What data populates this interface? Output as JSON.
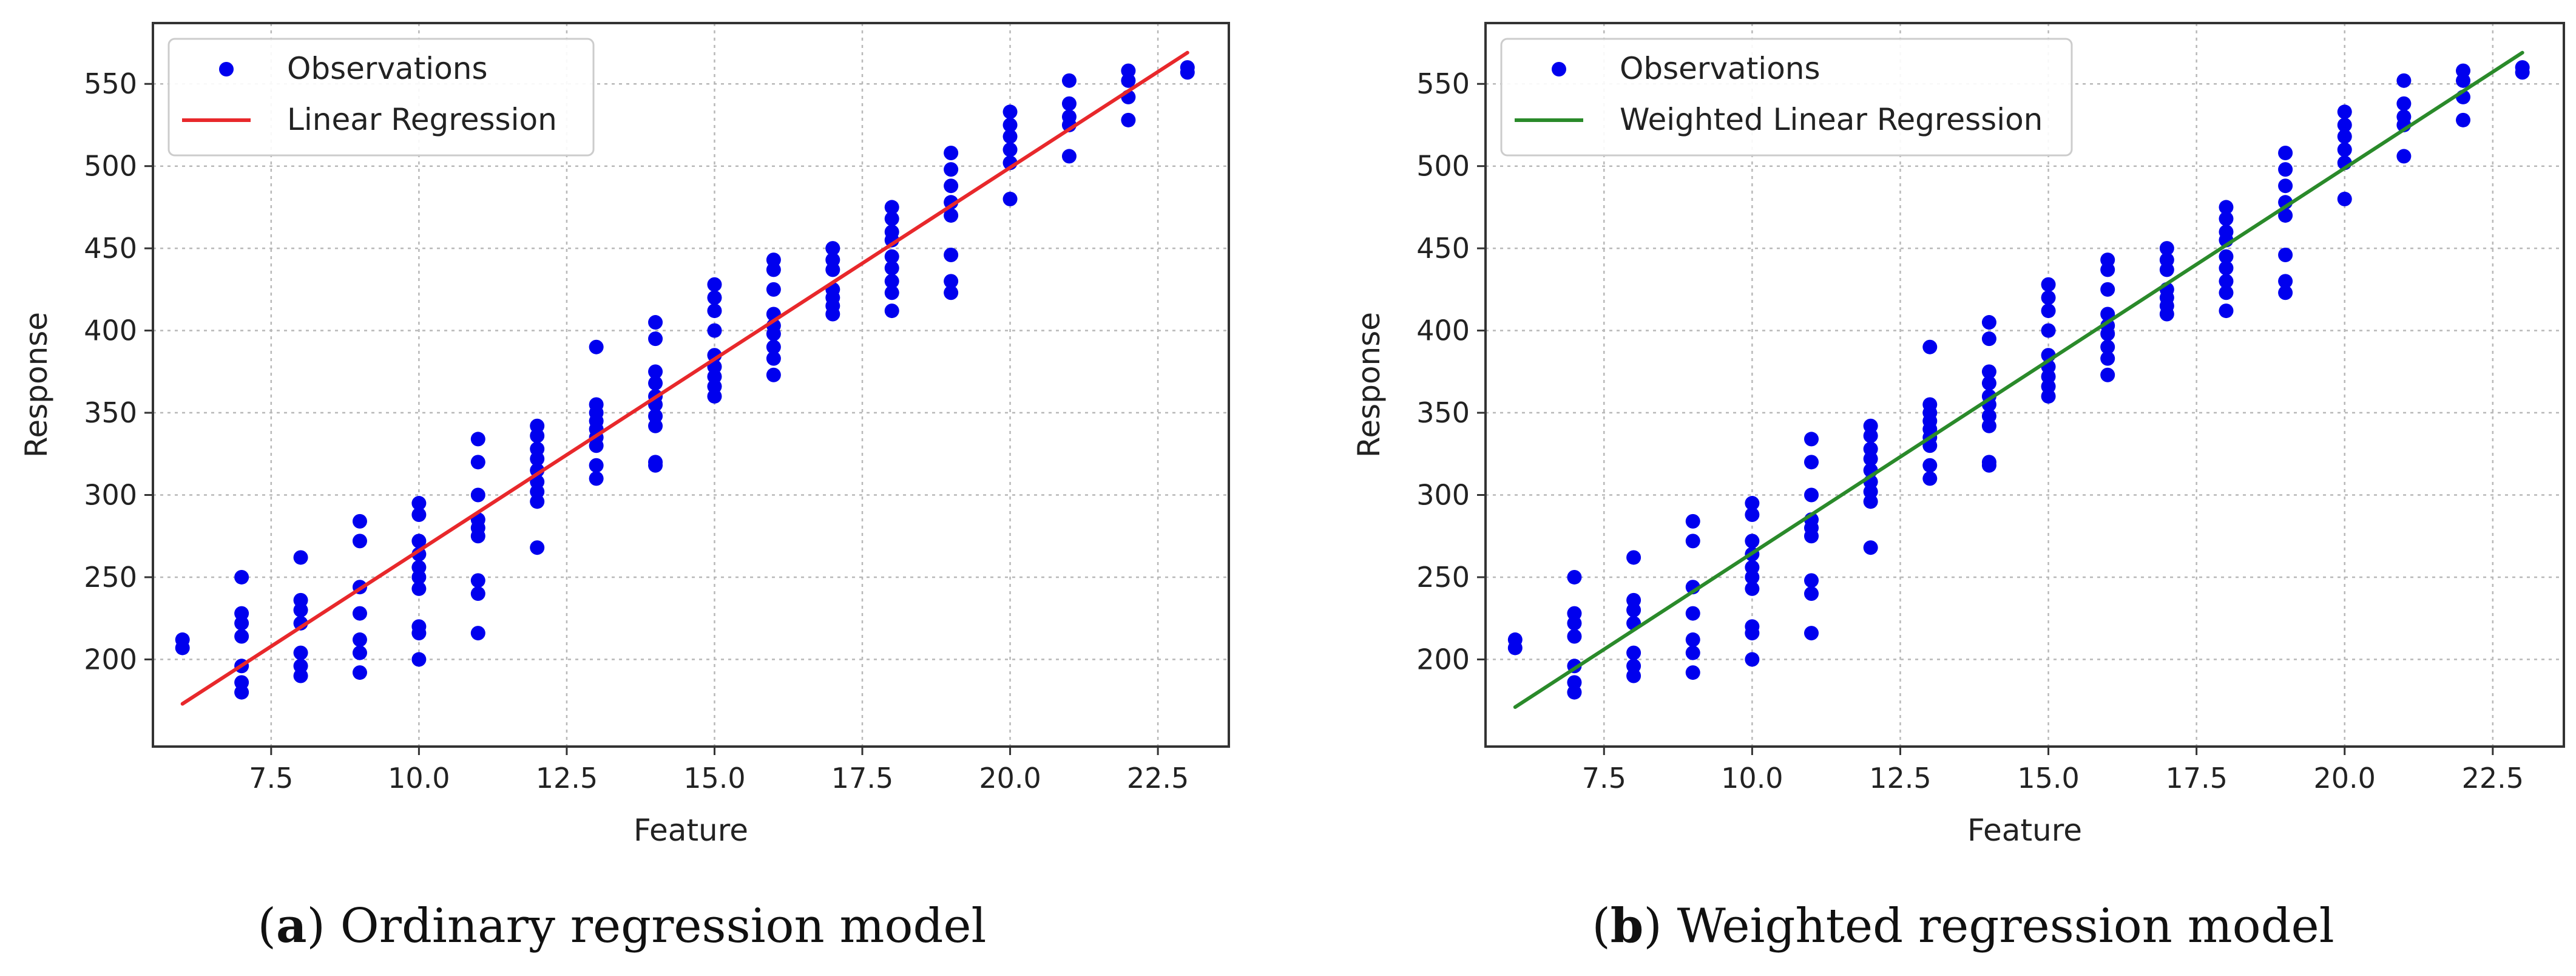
{
  "chart_data": [
    {
      "type": "scatter",
      "caption_letter": "a",
      "caption_text": "Ordinary regression model",
      "caption_open": "(",
      "caption_close": ") ",
      "xlabel": "Feature",
      "ylabel": "Response",
      "xlim": [
        5.5,
        23.7
      ],
      "ylim": [
        147,
        587
      ],
      "xticks": [
        7.5,
        10.0,
        12.5,
        15.0,
        17.5,
        20.0,
        22.5
      ],
      "xtick_labels": [
        "7.5",
        "10.0",
        "12.5",
        "15.0",
        "17.5",
        "20.0",
        "22.5"
      ],
      "yticks": [
        200,
        250,
        300,
        350,
        400,
        450,
        500,
        550
      ],
      "ytick_labels": [
        "200",
        "250",
        "300",
        "350",
        "400",
        "450",
        "500",
        "550"
      ],
      "grid": true,
      "legend_position": "top-left",
      "legend": [
        "Observations",
        "Linear Regression"
      ],
      "series": [
        {
          "name": "Observations",
          "kind": "points",
          "color": "#0000ee",
          "points": [
            [
              6,
              207
            ],
            [
              6,
              212
            ],
            [
              7,
              250
            ],
            [
              7,
              228
            ],
            [
              7,
              222
            ],
            [
              7,
              214
            ],
            [
              7,
              196
            ],
            [
              7,
              186
            ],
            [
              7,
              180
            ],
            [
              8,
              262
            ],
            [
              8,
              236
            ],
            [
              8,
              230
            ],
            [
              8,
              222
            ],
            [
              8,
              204
            ],
            [
              8,
              196
            ],
            [
              8,
              190
            ],
            [
              9,
              284
            ],
            [
              9,
              272
            ],
            [
              9,
              244
            ],
            [
              9,
              228
            ],
            [
              9,
              212
            ],
            [
              9,
              204
            ],
            [
              9,
              192
            ],
            [
              10,
              295
            ],
            [
              10,
              288
            ],
            [
              10,
              272
            ],
            [
              10,
              264
            ],
            [
              10,
              256
            ],
            [
              10,
              250
            ],
            [
              10,
              243
            ],
            [
              10,
              220
            ],
            [
              10,
              216
            ],
            [
              10,
              200
            ],
            [
              11,
              334
            ],
            [
              11,
              320
            ],
            [
              11,
              300
            ],
            [
              11,
              285
            ],
            [
              11,
              280
            ],
            [
              11,
              275
            ],
            [
              11,
              248
            ],
            [
              11,
              240
            ],
            [
              11,
              216
            ],
            [
              12,
              342
            ],
            [
              12,
              336
            ],
            [
              12,
              328
            ],
            [
              12,
              322
            ],
            [
              12,
              315
            ],
            [
              12,
              308
            ],
            [
              12,
              302
            ],
            [
              12,
              296
            ],
            [
              12,
              268
            ],
            [
              13,
              390
            ],
            [
              13,
              355
            ],
            [
              13,
              350
            ],
            [
              13,
              345
            ],
            [
              13,
              340
            ],
            [
              13,
              335
            ],
            [
              13,
              330
            ],
            [
              13,
              318
            ],
            [
              13,
              310
            ],
            [
              14,
              405
            ],
            [
              14,
              395
            ],
            [
              14,
              375
            ],
            [
              14,
              368
            ],
            [
              14,
              360
            ],
            [
              14,
              355
            ],
            [
              14,
              348
            ],
            [
              14,
              342
            ],
            [
              14,
              320
            ],
            [
              14,
              318
            ],
            [
              15,
              428
            ],
            [
              15,
              420
            ],
            [
              15,
              412
            ],
            [
              15,
              400
            ],
            [
              15,
              385
            ],
            [
              15,
              378
            ],
            [
              15,
              372
            ],
            [
              15,
              366
            ],
            [
              15,
              360
            ],
            [
              16,
              443
            ],
            [
              16,
              437
            ],
            [
              16,
              425
            ],
            [
              16,
              410
            ],
            [
              16,
              403
            ],
            [
              16,
              398
            ],
            [
              16,
              390
            ],
            [
              16,
              383
            ],
            [
              16,
              373
            ],
            [
              17,
              450
            ],
            [
              17,
              443
            ],
            [
              17,
              437
            ],
            [
              17,
              425
            ],
            [
              17,
              420
            ],
            [
              17,
              415
            ],
            [
              17,
              410
            ],
            [
              18,
              475
            ],
            [
              18,
              468
            ],
            [
              18,
              460
            ],
            [
              18,
              455
            ],
            [
              18,
              445
            ],
            [
              18,
              438
            ],
            [
              18,
              430
            ],
            [
              18,
              423
            ],
            [
              18,
              412
            ],
            [
              19,
              508
            ],
            [
              19,
              498
            ],
            [
              19,
              488
            ],
            [
              19,
              478
            ],
            [
              19,
              470
            ],
            [
              19,
              446
            ],
            [
              19,
              430
            ],
            [
              19,
              423
            ],
            [
              20,
              533
            ],
            [
              20,
              525
            ],
            [
              20,
              518
            ],
            [
              20,
              510
            ],
            [
              20,
              502
            ],
            [
              20,
              480
            ],
            [
              21,
              552
            ],
            [
              21,
              538
            ],
            [
              21,
              530
            ],
            [
              21,
              525
            ],
            [
              21,
              506
            ],
            [
              22,
              558
            ],
            [
              22,
              552
            ],
            [
              22,
              542
            ],
            [
              22,
              528
            ],
            [
              23,
              560
            ],
            [
              23,
              557
            ]
          ]
        },
        {
          "name": "Linear Regression",
          "kind": "line",
          "color": "#e8282b",
          "x": [
            6,
            23
          ],
          "y": [
            173,
            569
          ]
        }
      ]
    },
    {
      "type": "scatter",
      "caption_letter": "b",
      "caption_text": "Weighted regression model",
      "caption_open": "(",
      "caption_close": ") ",
      "xlabel": "Feature",
      "ylabel": "Response",
      "xlim": [
        5.5,
        23.7
      ],
      "ylim": [
        147,
        587
      ],
      "xticks": [
        7.5,
        10.0,
        12.5,
        15.0,
        17.5,
        20.0,
        22.5
      ],
      "xtick_labels": [
        "7.5",
        "10.0",
        "12.5",
        "15.0",
        "17.5",
        "20.0",
        "22.5"
      ],
      "yticks": [
        200,
        250,
        300,
        350,
        400,
        450,
        500,
        550
      ],
      "ytick_labels": [
        "200",
        "250",
        "300",
        "350",
        "400",
        "450",
        "500",
        "550"
      ],
      "grid": true,
      "legend_position": "top-left",
      "legend": [
        "Observations",
        "Weighted Linear Regression"
      ],
      "series": [
        {
          "name": "Observations",
          "kind": "points",
          "color": "#0000ee",
          "points": [
            [
              6,
              207
            ],
            [
              6,
              212
            ],
            [
              7,
              250
            ],
            [
              7,
              228
            ],
            [
              7,
              222
            ],
            [
              7,
              214
            ],
            [
              7,
              196
            ],
            [
              7,
              186
            ],
            [
              7,
              180
            ],
            [
              8,
              262
            ],
            [
              8,
              236
            ],
            [
              8,
              230
            ],
            [
              8,
              222
            ],
            [
              8,
              204
            ],
            [
              8,
              196
            ],
            [
              8,
              190
            ],
            [
              9,
              284
            ],
            [
              9,
              272
            ],
            [
              9,
              244
            ],
            [
              9,
              228
            ],
            [
              9,
              212
            ],
            [
              9,
              204
            ],
            [
              9,
              192
            ],
            [
              10,
              295
            ],
            [
              10,
              288
            ],
            [
              10,
              272
            ],
            [
              10,
              264
            ],
            [
              10,
              256
            ],
            [
              10,
              250
            ],
            [
              10,
              243
            ],
            [
              10,
              220
            ],
            [
              10,
              216
            ],
            [
              10,
              200
            ],
            [
              11,
              334
            ],
            [
              11,
              320
            ],
            [
              11,
              300
            ],
            [
              11,
              285
            ],
            [
              11,
              280
            ],
            [
              11,
              275
            ],
            [
              11,
              248
            ],
            [
              11,
              240
            ],
            [
              11,
              216
            ],
            [
              12,
              342
            ],
            [
              12,
              336
            ],
            [
              12,
              328
            ],
            [
              12,
              322
            ],
            [
              12,
              315
            ],
            [
              12,
              308
            ],
            [
              12,
              302
            ],
            [
              12,
              296
            ],
            [
              12,
              268
            ],
            [
              13,
              390
            ],
            [
              13,
              355
            ],
            [
              13,
              350
            ],
            [
              13,
              345
            ],
            [
              13,
              340
            ],
            [
              13,
              335
            ],
            [
              13,
              330
            ],
            [
              13,
              318
            ],
            [
              13,
              310
            ],
            [
              14,
              405
            ],
            [
              14,
              395
            ],
            [
              14,
              375
            ],
            [
              14,
              368
            ],
            [
              14,
              360
            ],
            [
              14,
              355
            ],
            [
              14,
              348
            ],
            [
              14,
              342
            ],
            [
              14,
              320
            ],
            [
              14,
              318
            ],
            [
              15,
              428
            ],
            [
              15,
              420
            ],
            [
              15,
              412
            ],
            [
              15,
              400
            ],
            [
              15,
              385
            ],
            [
              15,
              378
            ],
            [
              15,
              372
            ],
            [
              15,
              366
            ],
            [
              15,
              360
            ],
            [
              16,
              443
            ],
            [
              16,
              437
            ],
            [
              16,
              425
            ],
            [
              16,
              410
            ],
            [
              16,
              403
            ],
            [
              16,
              398
            ],
            [
              16,
              390
            ],
            [
              16,
              383
            ],
            [
              16,
              373
            ],
            [
              17,
              450
            ],
            [
              17,
              443
            ],
            [
              17,
              437
            ],
            [
              17,
              425
            ],
            [
              17,
              420
            ],
            [
              17,
              415
            ],
            [
              17,
              410
            ],
            [
              18,
              475
            ],
            [
              18,
              468
            ],
            [
              18,
              460
            ],
            [
              18,
              455
            ],
            [
              18,
              445
            ],
            [
              18,
              438
            ],
            [
              18,
              430
            ],
            [
              18,
              423
            ],
            [
              18,
              412
            ],
            [
              19,
              508
            ],
            [
              19,
              498
            ],
            [
              19,
              488
            ],
            [
              19,
              478
            ],
            [
              19,
              470
            ],
            [
              19,
              446
            ],
            [
              19,
              430
            ],
            [
              19,
              423
            ],
            [
              20,
              533
            ],
            [
              20,
              525
            ],
            [
              20,
              518
            ],
            [
              20,
              510
            ],
            [
              20,
              502
            ],
            [
              20,
              480
            ],
            [
              21,
              552
            ],
            [
              21,
              538
            ],
            [
              21,
              530
            ],
            [
              21,
              525
            ],
            [
              21,
              506
            ],
            [
              22,
              558
            ],
            [
              22,
              552
            ],
            [
              22,
              542
            ],
            [
              22,
              528
            ],
            [
              23,
              560
            ],
            [
              23,
              557
            ]
          ]
        },
        {
          "name": "Weighted Linear Regression",
          "kind": "line",
          "color": "#2a8a2a",
          "x": [
            6,
            23
          ],
          "y": [
            171,
            569
          ]
        }
      ]
    }
  ]
}
